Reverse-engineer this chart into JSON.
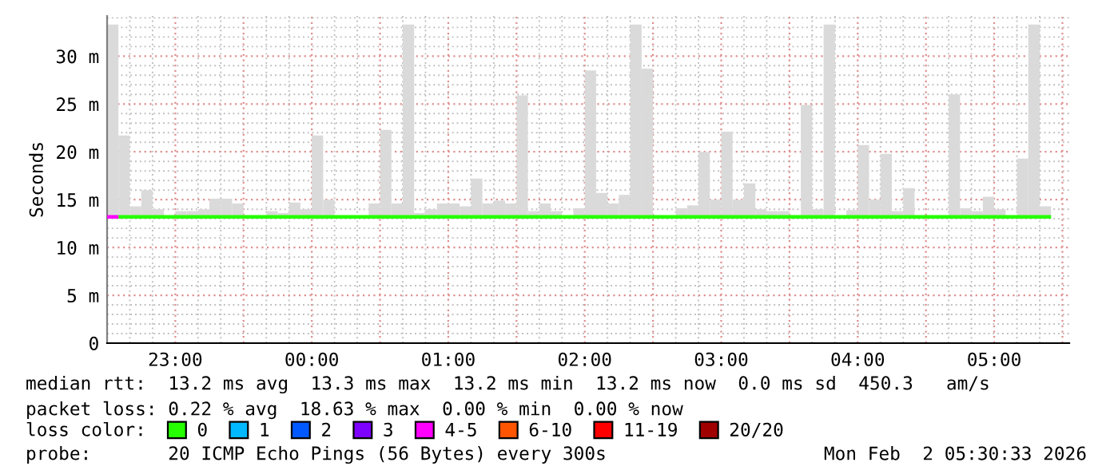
{
  "chart_data": {
    "type": "bar",
    "ylabel": "Seconds",
    "legend_title": "loss color:",
    "legend": "bottom",
    "grid": true,
    "xlim": [
      "2026-02-01T22:30",
      "2026-02-02T05:33"
    ],
    "xticks": [
      {
        "value": "2026-02-01T23:00",
        "label": "23:00"
      },
      {
        "value": "2026-02-01T23:30",
        "label": null
      },
      {
        "value": "2026-02-02T00:00",
        "label": "00:00"
      },
      {
        "value": "2026-02-02T00:30",
        "label": null
      },
      {
        "value": "2026-02-02T01:00",
        "label": "01:00"
      },
      {
        "value": "2026-02-02T01:30",
        "label": null
      },
      {
        "value": "2026-02-02T02:00",
        "label": "02:00"
      },
      {
        "value": "2026-02-02T02:30",
        "label": null
      },
      {
        "value": "2026-02-02T03:00",
        "label": "03:00"
      },
      {
        "value": "2026-02-02T03:30",
        "label": null
      },
      {
        "value": "2026-02-02T04:00",
        "label": "04:00"
      },
      {
        "value": "2026-02-02T04:30",
        "label": null
      },
      {
        "value": "2026-02-02T05:00",
        "label": "05:00"
      },
      {
        "value": "2026-02-02T05:30",
        "label": null
      }
    ],
    "ylim": [
      0,
      34.2
    ],
    "yticks": [
      0,
      {
        "value": 5,
        "label": "5 m"
      },
      {
        "value": 10,
        "label": "10 m"
      },
      {
        "value": 15,
        "label": "15 m"
      },
      {
        "value": 20,
        "label": "20 m"
      },
      {
        "value": 25,
        "label": "25 m"
      },
      {
        "value": 30,
        "label": "30 m"
      }
    ],
    "annotations": [
      "median rtt:  13.2 ms avg  13.3 ms max  13.2 ms min  13.2 ms now  0.0 ms sd  450.3   am/s",
      "packet loss: 0.22 % avg  18.63 % max  0.00 % min  0.00 % now",
      "probe:       20 ICMP Echo Pings (56 Bytes) every 300s",
      "Mon Feb  2 05:30:33 2026"
    ],
    "series": [
      {
        "color": "#dadada",
        "x": [
          "2026-02-01T22:32:30",
          "2026-02-01T22:37:30",
          "2026-02-01T22:42:30",
          "2026-02-01T22:47:30",
          "2026-02-01T22:52:30",
          "2026-02-01T22:57:30",
          "2026-02-01T23:02:30",
          "2026-02-01T23:07:30",
          "2026-02-01T23:12:30",
          "2026-02-01T23:17:30",
          "2026-02-01T23:22:30",
          "2026-02-01T23:27:30",
          "2026-02-01T23:32:30",
          "2026-02-01T23:37:30",
          "2026-02-01T23:42:30",
          "2026-02-01T23:47:30",
          "2026-02-01T23:52:30",
          "2026-02-01T23:57:30",
          "2026-02-02T00:02:30",
          "2026-02-02T00:07:30",
          "2026-02-02T00:12:30",
          "2026-02-02T00:17:30",
          "2026-02-02T00:22:30",
          "2026-02-02T00:27:30",
          "2026-02-02T00:32:30",
          "2026-02-02T00:37:30",
          "2026-02-02T00:42:30",
          "2026-02-02T00:47:30",
          "2026-02-02T00:52:30",
          "2026-02-02T00:57:30",
          "2026-02-02T01:02:30",
          "2026-02-02T01:07:30",
          "2026-02-02T01:12:30",
          "2026-02-02T01:17:30",
          "2026-02-02T01:22:30",
          "2026-02-02T01:27:30",
          "2026-02-02T01:32:30",
          "2026-02-02T01:37:30",
          "2026-02-02T01:42:30",
          "2026-02-02T01:47:30",
          "2026-02-02T01:52:30",
          "2026-02-02T01:57:30",
          "2026-02-02T02:02:30",
          "2026-02-02T02:07:30",
          "2026-02-02T02:12:30",
          "2026-02-02T02:17:30",
          "2026-02-02T02:22:30",
          "2026-02-02T02:27:30",
          "2026-02-02T02:32:30",
          "2026-02-02T02:37:30",
          "2026-02-02T02:42:30",
          "2026-02-02T02:47:30",
          "2026-02-02T02:52:30",
          "2026-02-02T02:57:30",
          "2026-02-02T03:02:30",
          "2026-02-02T03:07:30",
          "2026-02-02T03:12:30",
          "2026-02-02T03:17:30",
          "2026-02-02T03:22:30",
          "2026-02-02T03:27:30",
          "2026-02-02T03:32:30",
          "2026-02-02T03:37:30",
          "2026-02-02T03:42:30",
          "2026-02-02T03:47:30",
          "2026-02-02T03:52:30",
          "2026-02-02T03:57:30",
          "2026-02-02T04:02:30",
          "2026-02-02T04:07:30",
          "2026-02-02T04:12:30",
          "2026-02-02T04:17:30",
          "2026-02-02T04:22:30",
          "2026-02-02T04:27:30",
          "2026-02-02T04:32:30",
          "2026-02-02T04:37:30",
          "2026-02-02T04:42:30",
          "2026-02-02T04:47:30",
          "2026-02-02T04:52:30",
          "2026-02-02T04:57:30",
          "2026-02-02T05:02:30",
          "2026-02-02T05:07:30",
          "2026-02-02T05:12:30",
          "2026-02-02T05:17:30",
          "2026-02-02T05:22:30"
        ],
        "base": [
          13,
          13,
          13,
          13,
          13,
          null,
          13,
          13,
          13,
          13,
          13,
          13,
          null,
          null,
          13,
          13,
          13,
          13,
          13,
          13,
          null,
          null,
          null,
          13,
          13,
          13,
          13,
          13,
          13,
          13,
          13,
          13,
          13,
          13,
          13,
          13,
          13,
          13,
          13,
          13,
          null,
          13,
          13,
          13,
          13,
          13,
          13,
          13,
          null,
          null,
          13,
          13,
          13,
          13,
          13,
          13,
          13,
          13,
          13,
          13,
          null,
          13,
          13,
          13,
          null,
          13,
          13,
          13,
          13,
          13,
          13,
          null,
          null,
          null,
          13,
          13,
          13,
          13,
          13,
          null,
          13,
          13,
          13
        ],
        "values": [
          20.3,
          8.7,
          1.3,
          3.0,
          1.0,
          null,
          0.8,
          0.8,
          1.0,
          2.1,
          2.1,
          1.6,
          null,
          null,
          0.8,
          0.6,
          1.7,
          1.0,
          8.7,
          2.0,
          null,
          null,
          null,
          1.6,
          9.3,
          1.6,
          20.3,
          0.6,
          1.0,
          1.6,
          1.6,
          1.3,
          4.2,
          1.6,
          1.9,
          1.6,
          12.9,
          0.8,
          1.6,
          0.8,
          null,
          1.1,
          15.5,
          2.7,
          1.6,
          2.5,
          20.3,
          15.7,
          null,
          null,
          1.1,
          1.4,
          7.0,
          2.0,
          9.1,
          2.0,
          3.7,
          1.0,
          0.8,
          0.8,
          null,
          11.9,
          1.0,
          20.3,
          null,
          0.9,
          7.7,
          2.0,
          6.8,
          0.8,
          3.2,
          null,
          null,
          null,
          13.0,
          1.1,
          0.8,
          2.3,
          1.0,
          null,
          6.3,
          20.3,
          1.3
        ]
      },
      {
        "type": "line",
        "name": "0",
        "color": "#26ff00",
        "x": [
          "2026-02-01T22:35",
          "2026-02-02T05:25"
        ],
        "values": [
          13.2,
          13.2
        ]
      },
      {
        "type": "line",
        "name": "1",
        "color": "#00b8ff"
      },
      {
        "type": "line",
        "name": "2",
        "color": "#0059ff"
      },
      {
        "type": "line",
        "name": "3",
        "color": "#7e00ff"
      },
      {
        "type": "line",
        "name": "4-5",
        "color": "#ff00ff",
        "x": [
          "2026-02-01T22:30",
          "2026-02-01T22:35"
        ],
        "values": [
          13.2,
          13.2
        ]
      },
      {
        "type": "line",
        "name": "6-10",
        "color": "#ff5500"
      },
      {
        "type": "line",
        "name": "11-19",
        "color": "#ff0000"
      },
      {
        "type": "line",
        "name": "20/20",
        "color": "#a10000"
      }
    ]
  }
}
